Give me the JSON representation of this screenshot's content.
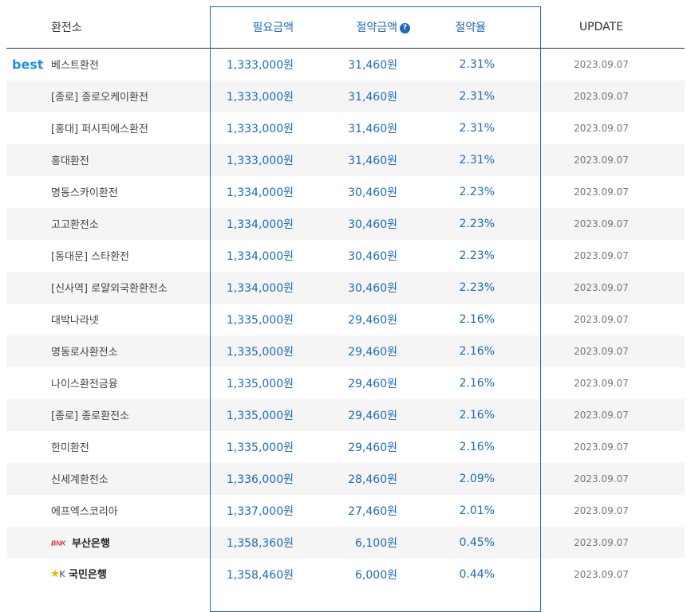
{
  "header": {
    "col_exchange": "환전소",
    "col_required": "필요금액",
    "col_savings": "절약금액",
    "col_savings_help_icon": "question-circle-icon",
    "col_rate": "절약율",
    "col_update": "UPDATE"
  },
  "badge_best": "best",
  "rows": [
    {
      "name": "베스트환전",
      "required": "1,333,000원",
      "savings": "31,460원",
      "rate": "2.31%",
      "update": "2023.09.07"
    },
    {
      "name": "[종로] 종로오케이환전",
      "required": "1,333,000원",
      "savings": "31,460원",
      "rate": "2.31%",
      "update": "2023.09.07"
    },
    {
      "name": "[홍대] 퍼시픽에스환전",
      "required": "1,333,000원",
      "savings": "31,460원",
      "rate": "2.31%",
      "update": "2023.09.07"
    },
    {
      "name": "홍대환전",
      "required": "1,333,000원",
      "savings": "31,460원",
      "rate": "2.31%",
      "update": "2023.09.07"
    },
    {
      "name": "명동스카이환전",
      "required": "1,334,000원",
      "savings": "30,460원",
      "rate": "2.23%",
      "update": "2023.09.07"
    },
    {
      "name": "고고환전소",
      "required": "1,334,000원",
      "savings": "30,460원",
      "rate": "2.23%",
      "update": "2023.09.07"
    },
    {
      "name": "[동대문] 스타환전",
      "required": "1,334,000원",
      "savings": "30,460원",
      "rate": "2.23%",
      "update": "2023.09.07"
    },
    {
      "name": "[신사역] 로얄외국환환전소",
      "required": "1,334,000원",
      "savings": "30,460원",
      "rate": "2.23%",
      "update": "2023.09.07"
    },
    {
      "name": "대박나라넷",
      "required": "1,335,000원",
      "savings": "29,460원",
      "rate": "2.16%",
      "update": "2023.09.07"
    },
    {
      "name": "명동로사환전소",
      "required": "1,335,000원",
      "savings": "29,460원",
      "rate": "2.16%",
      "update": "2023.09.07"
    },
    {
      "name": "나이스환전금융",
      "required": "1,335,000원",
      "savings": "29,460원",
      "rate": "2.16%",
      "update": "2023.09.07"
    },
    {
      "name": "[종로] 종로환전소",
      "required": "1,335,000원",
      "savings": "29,460원",
      "rate": "2.16%",
      "update": "2023.09.07"
    },
    {
      "name": "한미환전",
      "required": "1,335,000원",
      "savings": "29,460원",
      "rate": "2.16%",
      "update": "2023.09.07"
    },
    {
      "name": "신세계환전소",
      "required": "1,336,000원",
      "savings": "28,460원",
      "rate": "2.09%",
      "update": "2023.09.07"
    },
    {
      "name": "에프엑스코리아",
      "required": "1,337,000원",
      "savings": "27,460원",
      "rate": "2.01%",
      "update": "2023.09.07"
    },
    {
      "name": "부산은행",
      "logo_text": "BNK",
      "logo_color": "#d7282f",
      "required": "1,358,360원",
      "savings": "6,100원",
      "rate": "0.45%",
      "update": "2023.09.07"
    },
    {
      "name": "국민은행",
      "logo_icon": "kb-star-icon",
      "logo_color": "#f5b800",
      "required": "1,358,460원",
      "savings": "6,000원",
      "rate": "0.44%",
      "update": "2023.09.07"
    }
  ],
  "colors": {
    "accent": "#1c6bb8",
    "best": "#1e8ee0",
    "row_alt": "#f5f5f5"
  }
}
